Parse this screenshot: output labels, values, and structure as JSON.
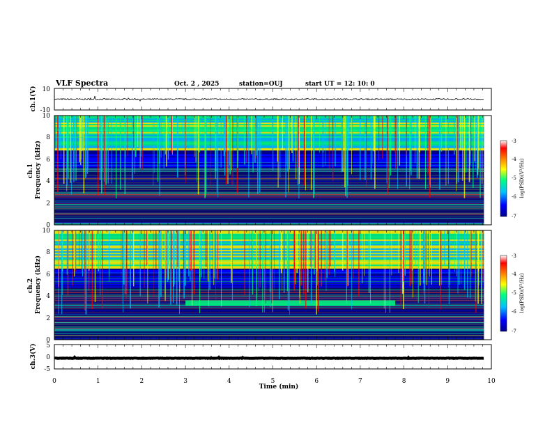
{
  "header": {
    "title": "VLF Spectra",
    "date": "Oct. 2 , 2025",
    "station": "station=OUJ",
    "start": "start UT =  12: 10: 0"
  },
  "chart_data": {
    "type": "heatmap",
    "title": "VLF Spectra",
    "xlabel": "Time (min)",
    "xlim": [
      0,
      10
    ],
    "data_end_min": 9.83,
    "x_ticks": [
      "0",
      "1",
      "2",
      "3",
      "4",
      "5",
      "6",
      "7",
      "8",
      "9",
      "10"
    ],
    "panels": [
      {
        "name": "ch1-waveform",
        "kind": "line",
        "ylabel": "ch.1(V)",
        "ylim": [
          -10,
          10
        ],
        "y_ticks": [
          "10",
          "-10"
        ],
        "mean_level": 0,
        "noise_amplitude": 1.2
      },
      {
        "name": "ch1-spectrogram",
        "kind": "spectrogram",
        "ylabel": "ch.1\nFrequency (kHz)",
        "ylim": [
          0,
          10
        ],
        "y_ticks": [
          "0",
          "2",
          "4",
          "6",
          "8",
          "10"
        ],
        "high_band_kHz": [
          6.8,
          10
        ],
        "mid_band_kHz": [
          5.2,
          6.8
        ],
        "colorbar": {
          "label": "log(PSD)(V²/Hz)",
          "range": [
            -7,
            -3
          ],
          "ticks": [
            "-3",
            "-4",
            "-5",
            "-6",
            "-7"
          ]
        }
      },
      {
        "name": "ch2-spectrogram",
        "kind": "spectrogram",
        "ylabel": "ch.2\nFrequency (kHz)",
        "ylim": [
          0,
          10
        ],
        "y_ticks": [
          "0",
          "2",
          "4",
          "6",
          "8",
          "10"
        ],
        "high_band_kHz": [
          6.5,
          10
        ],
        "mid_band_kHz": [
          4.8,
          6.5
        ],
        "emission_band": {
          "t_start_min": 3.0,
          "t_end_min": 7.8,
          "f_low_kHz": 3.1,
          "f_high_kHz": 3.6
        },
        "colorbar": {
          "label": "log(PSD)(V²/Hz)",
          "range": [
            -7,
            -3
          ],
          "ticks": [
            "-3",
            "-4",
            "-5",
            "-6",
            "-7"
          ]
        }
      },
      {
        "name": "ch3-waveform",
        "kind": "line",
        "ylabel": "ch.3(V)",
        "ylim": [
          -5,
          5
        ],
        "y_ticks": [
          "5",
          "0",
          "-5"
        ],
        "mean_level": -0.6,
        "noise_amplitude": 0.15
      }
    ],
    "colormap": [
      "#00008b",
      "#0000ff",
      "#00bfff",
      "#00ff80",
      "#ffff00",
      "#ff8000",
      "#ff0000",
      "#ffffff"
    ]
  }
}
